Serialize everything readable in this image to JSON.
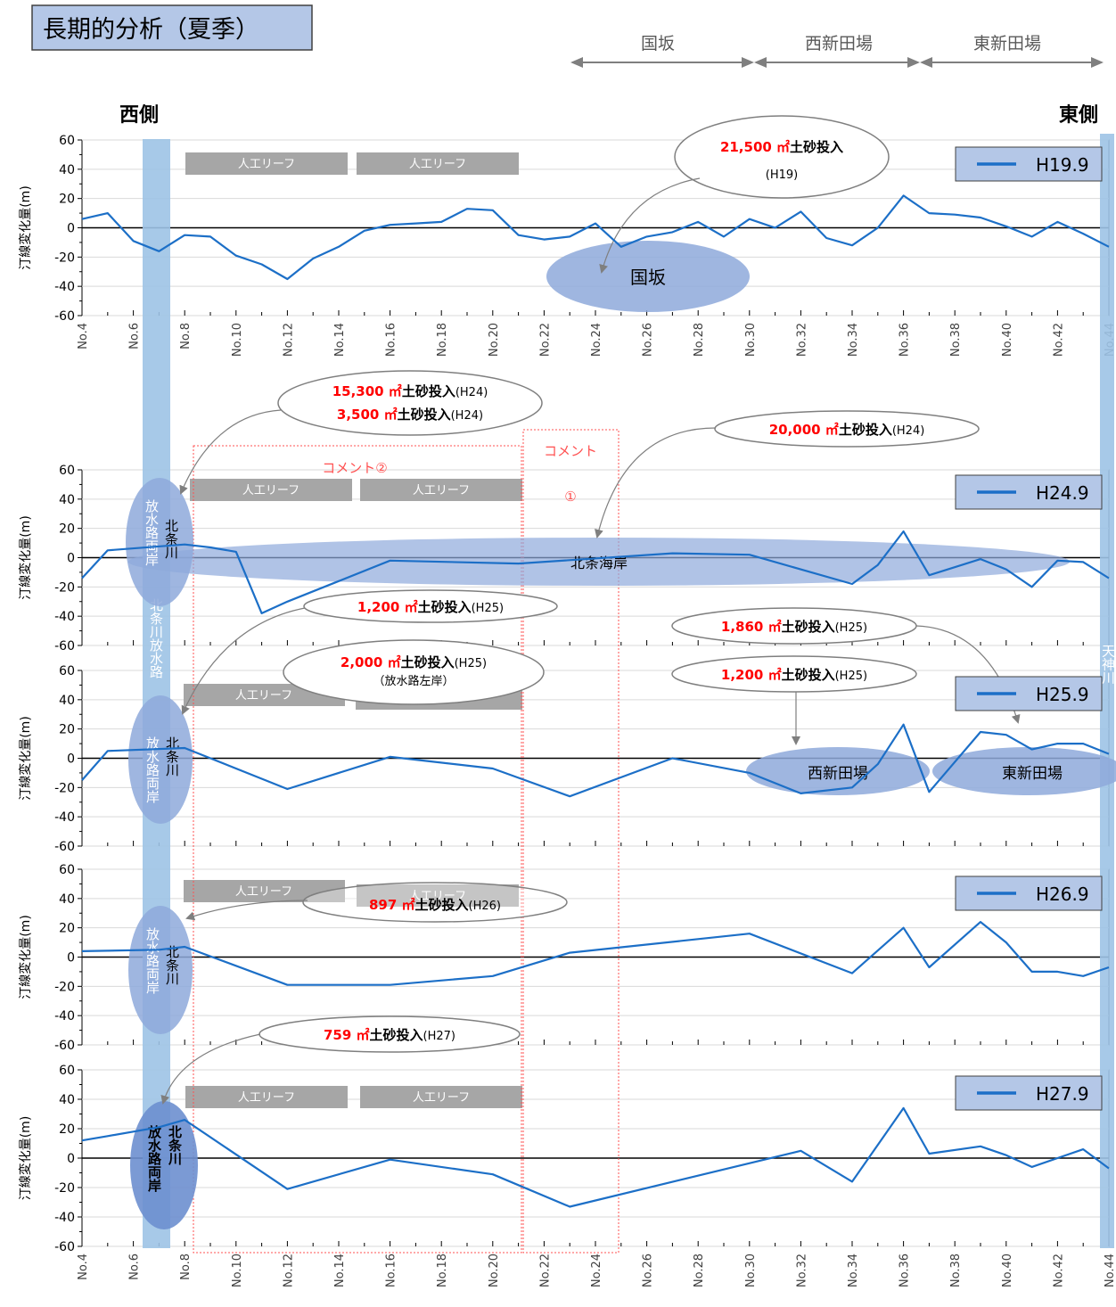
{
  "page_title": "長期的分析（夏季）",
  "header": {
    "side_west": "西側",
    "side_east": "東側",
    "zones": [
      {
        "label": "国坂",
        "from": "No.24",
        "to": "No.30"
      },
      {
        "label": "西新田場",
        "from": "No.30",
        "to": "No.37"
      },
      {
        "label": "東新田場",
        "from": "No.37",
        "to": "No.44"
      }
    ]
  },
  "colors": {
    "series_line": "#1c6fc7",
    "legend_bg": "#b4c7e7",
    "river_band": "#9dc3e6",
    "zone_ellipse": "#8ea9db",
    "reef": "#a6a6a6",
    "arrow": "#7f7f7f",
    "highlight_red": "#ff0000",
    "comment_box": "#ff5050",
    "title_bg": "#b4c7e7"
  },
  "reef_label": "人工リーフ",
  "river_band_label_top": "北条川放水路",
  "river_band_label_mid": "北条川放水路両岸",
  "river_side_label": "北条川",
  "river_banks_label": "放水路両岸",
  "east_band_label": "天神川",
  "comments": {
    "c1_label": "コメント",
    "c1_num": "①",
    "c2_label": "コメント②"
  },
  "chart_data": [
    {
      "type": "line",
      "series": [
        {
          "name": "H19.9",
          "x": [
            4,
            5,
            6,
            7,
            8,
            9,
            10,
            11,
            12,
            13,
            14,
            15,
            16,
            17,
            18,
            19,
            20,
            21,
            22,
            23,
            24,
            25,
            26,
            27,
            28,
            29,
            30,
            31,
            32,
            33,
            34,
            35,
            36,
            37,
            38,
            39,
            40,
            41,
            42,
            43,
            44
          ],
          "values": [
            6,
            10,
            -9,
            -16,
            -5,
            -6,
            -19,
            -25,
            -35,
            -21,
            -13,
            -2,
            2,
            3,
            4,
            13,
            12,
            -5,
            -8,
            -6,
            3,
            -13,
            -6,
            -3,
            4,
            -6,
            6,
            0,
            11,
            -7,
            -12,
            0,
            22,
            10,
            9,
            7,
            1,
            -6,
            4,
            -4,
            -13
          ]
        }
      ],
      "ylabel": "汀線変化量(m)",
      "ylim": [
        -60,
        60
      ],
      "yticks": [
        60,
        40,
        20,
        0,
        -20,
        -40,
        -60
      ],
      "xtick_labels": [
        "No.4",
        "No.6",
        "No.8",
        "No.10",
        "No.12",
        "No.14",
        "No.16",
        "No.18",
        "No.20",
        "No.22",
        "No.24",
        "No.26",
        "No.28",
        "No.30",
        "No.32",
        "No.34",
        "No.36",
        "No.38",
        "No.40",
        "No.42",
        "No.44"
      ],
      "annotations": [
        {
          "amount": "21,500 ㎡",
          "text": "土砂投入",
          "year": "(H19)"
        },
        {
          "area": "国坂"
        }
      ]
    },
    {
      "type": "line",
      "series": [
        {
          "name": "H24.9",
          "x": [
            4,
            5,
            8,
            9,
            10,
            11,
            12,
            14,
            16,
            21,
            27,
            30,
            34,
            35,
            36,
            37,
            39,
            40,
            41,
            42,
            43,
            44
          ],
          "values": [
            -14,
            5,
            9,
            7,
            4,
            -38,
            -30,
            -16,
            -2,
            -4,
            3,
            2,
            -18,
            -5,
            18,
            -12,
            -1,
            -8,
            -20,
            -2,
            -3,
            -14
          ]
        }
      ],
      "ylabel": "汀線変化量(m)",
      "ylim": [
        -60,
        60
      ],
      "yticks": [
        60,
        40,
        20,
        0,
        -20,
        -40,
        -60
      ],
      "annotations": [
        {
          "amount1": "15,300 ㎡",
          "amount2": "3,500 ㎡",
          "text": "土砂投入",
          "year": "(H24)"
        },
        {
          "amount": "20,000 ㎡",
          "text": "土砂投入",
          "year": "(H24)"
        },
        {
          "area": "北条海岸"
        }
      ]
    },
    {
      "type": "line",
      "series": [
        {
          "name": "H25.9",
          "x": [
            4,
            5,
            8,
            12,
            16,
            20,
            23,
            27,
            30,
            32,
            34,
            35,
            36,
            37,
            39,
            40,
            41,
            42,
            43,
            44
          ],
          "values": [
            -15,
            5,
            7,
            -21,
            1,
            -7,
            -26,
            0,
            -10,
            -24,
            -20,
            -4,
            23,
            -23,
            18,
            16,
            6,
            10,
            10,
            3
          ]
        }
      ],
      "ylabel": "汀線変化量(m)",
      "ylim": [
        -60,
        60
      ],
      "yticks": [
        60,
        40,
        20,
        0,
        -20,
        -40,
        -60
      ],
      "annotations": [
        {
          "amount": "1,200 ㎡",
          "text": "土砂投入",
          "year": "(H25)"
        },
        {
          "amount": "2,000 ㎡",
          "text": "土砂投入",
          "year": "(H25)",
          "note": "（放水路左岸）"
        },
        {
          "amount": "1,860 ㎡",
          "text": "土砂投入",
          "year": "(H25)"
        },
        {
          "amount": "1,200 ㎡",
          "text": "土砂投入",
          "year": "(H25)"
        },
        {
          "area": "西新田場"
        },
        {
          "area": "東新田場"
        }
      ]
    },
    {
      "type": "line",
      "series": [
        {
          "name": "H26.9",
          "x": [
            4,
            7,
            8,
            12,
            16,
            20,
            23,
            30,
            34,
            36,
            37,
            39,
            40,
            41,
            42,
            43,
            44
          ],
          "values": [
            4,
            5,
            7,
            -19,
            -19,
            -13,
            3,
            16,
            -11,
            20,
            -7,
            24,
            10,
            -10,
            -10,
            -13,
            -7
          ]
        }
      ],
      "ylabel": "汀線変化量(m)",
      "ylim": [
        -60,
        60
      ],
      "yticks": [
        60,
        40,
        20,
        0,
        -20,
        -40,
        -60
      ],
      "annotations": [
        {
          "amount": "897 ㎡",
          "text": "土砂投入",
          "year": "(H26)"
        }
      ]
    },
    {
      "type": "line",
      "series": [
        {
          "name": "H27.9",
          "x": [
            4,
            5,
            7,
            8,
            12,
            16,
            20,
            23,
            32,
            34,
            36,
            37,
            39,
            40,
            41,
            42,
            43,
            44
          ],
          "values": [
            12,
            15,
            21,
            26,
            -21,
            -1,
            -11,
            -33,
            5,
            -16,
            34,
            3,
            8,
            2,
            -6,
            0,
            6,
            -7
          ]
        }
      ],
      "ylabel": "汀線変化量(m)",
      "ylim": [
        -60,
        60
      ],
      "yticks": [
        60,
        40,
        20,
        0,
        -20,
        -40,
        -60
      ],
      "xtick_labels": [
        "No.4",
        "No.6",
        "No.8",
        "No.10",
        "No.12",
        "No.14",
        "No.16",
        "No.18",
        "No.20",
        "No.22",
        "No.24",
        "No.26",
        "No.28",
        "No.30",
        "No.32",
        "No.34",
        "No.36",
        "No.38",
        "No.40",
        "No.42",
        "No.44"
      ],
      "annotations": [
        {
          "amount": "759 ㎡",
          "text": "土砂投入",
          "year": "(H27)"
        }
      ]
    }
  ]
}
